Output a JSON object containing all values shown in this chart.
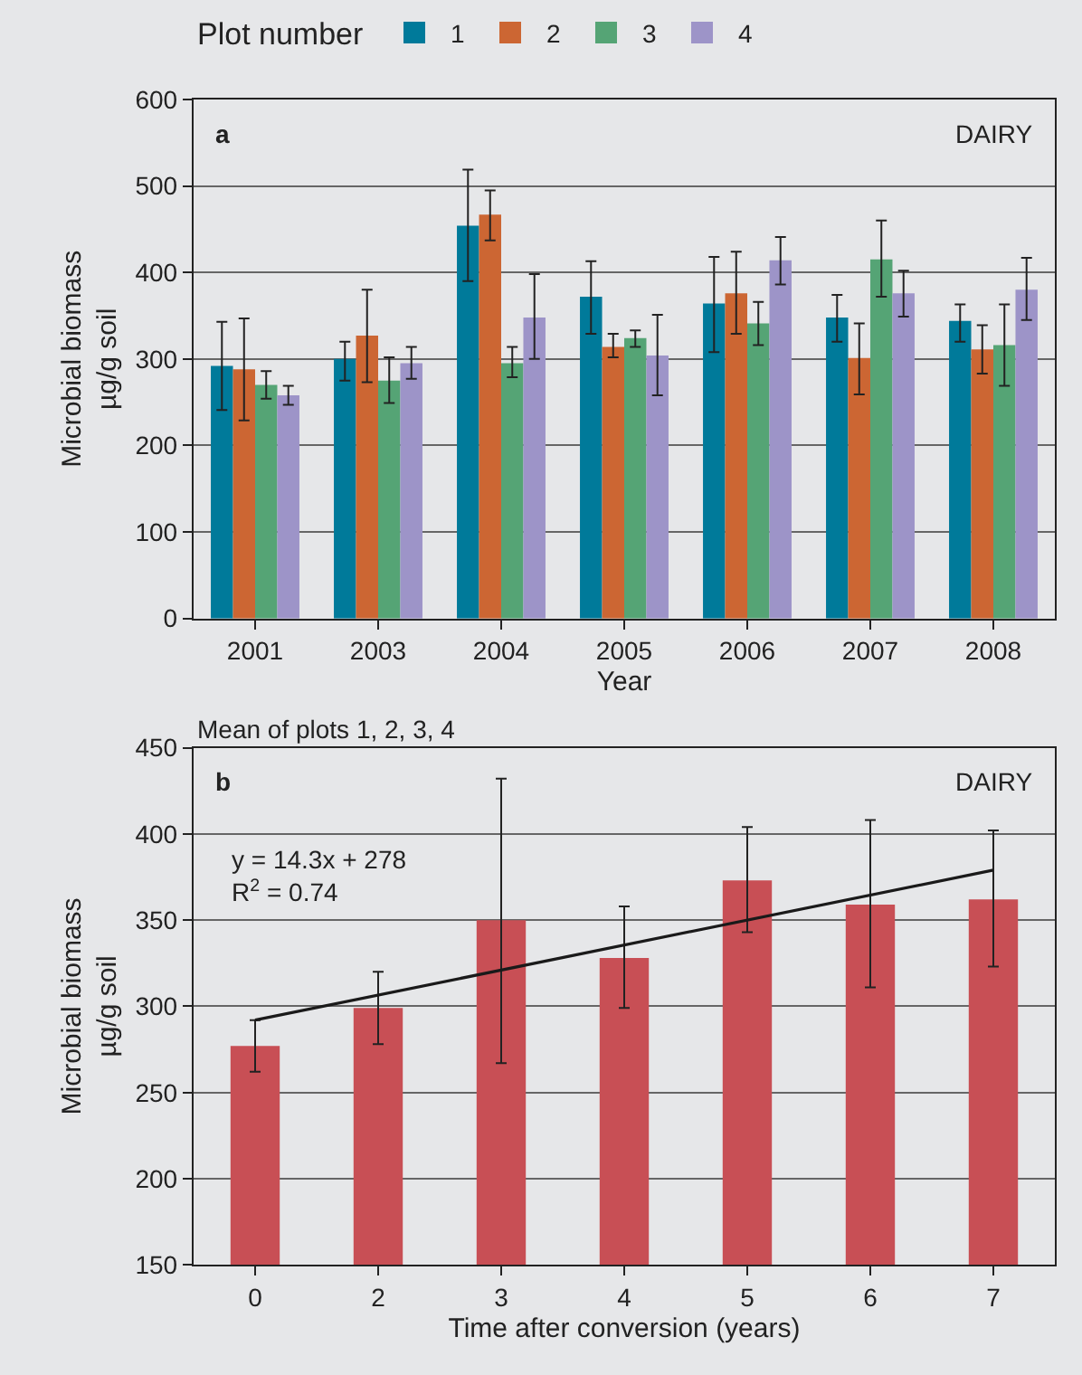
{
  "chart_data": [
    {
      "type": "bar",
      "legend_title": "Plot number",
      "xlabel": "Year",
      "ylabel": "Microbial biomass\nµg/g soil",
      "categories": [
        "2001",
        "2003",
        "2004",
        "2005",
        "2006",
        "2007",
        "2008"
      ],
      "series": [
        {
          "name": "1",
          "color": "#007a9a",
          "values": [
            292,
            300,
            454,
            372,
            364,
            348,
            344
          ],
          "errors": [
            [
              241,
              343
            ],
            [
              275,
              320
            ],
            [
              390,
              519
            ],
            [
              329,
              413
            ],
            [
              308,
              418
            ],
            [
              320,
              374
            ],
            [
              320,
              363
            ]
          ]
        },
        {
          "name": "2",
          "color": "#cc6633",
          "values": [
            288,
            327,
            467,
            314,
            376,
            301,
            311
          ],
          "errors": [
            [
              229,
              347
            ],
            [
              273,
              380
            ],
            [
              437,
              495
            ],
            [
              302,
              329
            ],
            [
              329,
              424
            ],
            [
              259,
              341
            ],
            [
              283,
              339
            ]
          ]
        },
        {
          "name": "3",
          "color": "#55a475",
          "values": [
            270,
            275,
            295,
            324,
            341,
            415,
            316
          ],
          "errors": [
            [
              254,
              286
            ],
            [
              249,
              302
            ],
            [
              279,
              314
            ],
            [
              314,
              333
            ],
            [
              316,
              366
            ],
            [
              372,
              460
            ],
            [
              269,
              363
            ]
          ]
        },
        {
          "name": "4",
          "color": "#9d94c8",
          "values": [
            258,
            295,
            348,
            304,
            414,
            376,
            380
          ],
          "errors": [
            [
              247,
              269
            ],
            [
              277,
              314
            ],
            [
              300,
              398
            ],
            [
              258,
              351
            ],
            [
              386,
              441
            ],
            [
              349,
              402
            ],
            [
              345,
              417
            ]
          ]
        }
      ],
      "ylim": [
        0,
        600
      ],
      "yticks": [
        0,
        100,
        200,
        300,
        400,
        500,
        600
      ],
      "grid": "y",
      "legend": "top left",
      "annotations": [
        "a",
        "DAIRY"
      ]
    },
    {
      "type": "bar",
      "title": "Mean of plots 1, 2, 3, 4",
      "xlabel": "Time after conversion (years)",
      "ylabel": "Microbial biomass\nµg/g soil",
      "categories": [
        "0",
        "2",
        "3",
        "4",
        "5",
        "6",
        "7"
      ],
      "series": [
        {
          "color": "#c84f55",
          "values": [
            277,
            299,
            350,
            328,
            373,
            359,
            362
          ],
          "errors": [
            [
              262,
              292
            ],
            [
              278,
              320
            ],
            [
              267,
              432
            ],
            [
              299,
              358
            ],
            [
              343,
              404
            ],
            [
              311,
              408
            ],
            [
              323,
              402
            ]
          ]
        },
        {
          "type": "line",
          "color": "#1a1a1a",
          "x": [
            "0",
            "7"
          ],
          "values": [
            292,
            379
          ]
        }
      ],
      "ylim": [
        150,
        450
      ],
      "yticks": [
        150,
        200,
        250,
        300,
        350,
        400,
        450
      ],
      "grid": "y",
      "legend": false,
      "annotations": [
        "b",
        "DAIRY",
        "y = 14.3x + 278\nR$^{2}$ = 0.74"
      ]
    }
  ]
}
